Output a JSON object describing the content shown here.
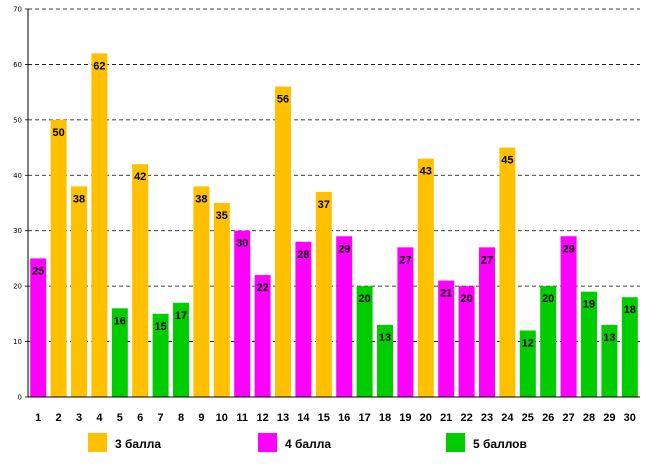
{
  "chart_data": {
    "type": "bar",
    "title": "",
    "xlabel": "",
    "ylabel": "",
    "ylim": [
      0,
      70
    ],
    "yticks": [
      0,
      10,
      20,
      30,
      40,
      50,
      60,
      70
    ],
    "grid": true,
    "legend_position": "bottom",
    "categories": [
      "1",
      "2",
      "3",
      "4",
      "5",
      "6",
      "7",
      "8",
      "9",
      "10",
      "11",
      "12",
      "13",
      "14",
      "15",
      "16",
      "17",
      "18",
      "19",
      "20",
      "21",
      "22",
      "23",
      "24",
      "25",
      "26",
      "27",
      "28",
      "29",
      "30"
    ],
    "values": [
      25,
      50,
      38,
      62,
      16,
      42,
      15,
      17,
      38,
      35,
      30,
      22,
      56,
      28,
      37,
      29,
      20,
      13,
      27,
      43,
      21,
      20,
      27,
      45,
      12,
      20,
      29,
      19,
      13,
      18
    ],
    "groups": [
      "4",
      "3",
      "3",
      "3",
      "5",
      "3",
      "5",
      "5",
      "3",
      "3",
      "4",
      "4",
      "3",
      "4",
      "3",
      "4",
      "5",
      "5",
      "4",
      "3",
      "4",
      "4",
      "4",
      "3",
      "5",
      "5",
      "4",
      "5",
      "5",
      "5"
    ],
    "series": [
      {
        "key": "3",
        "name": "3 балла",
        "color": "#FFC000"
      },
      {
        "key": "4",
        "name": "4 балла",
        "color": "#FF00FF"
      },
      {
        "key": "5",
        "name": "5 баллов",
        "color": "#00CC00"
      }
    ]
  }
}
